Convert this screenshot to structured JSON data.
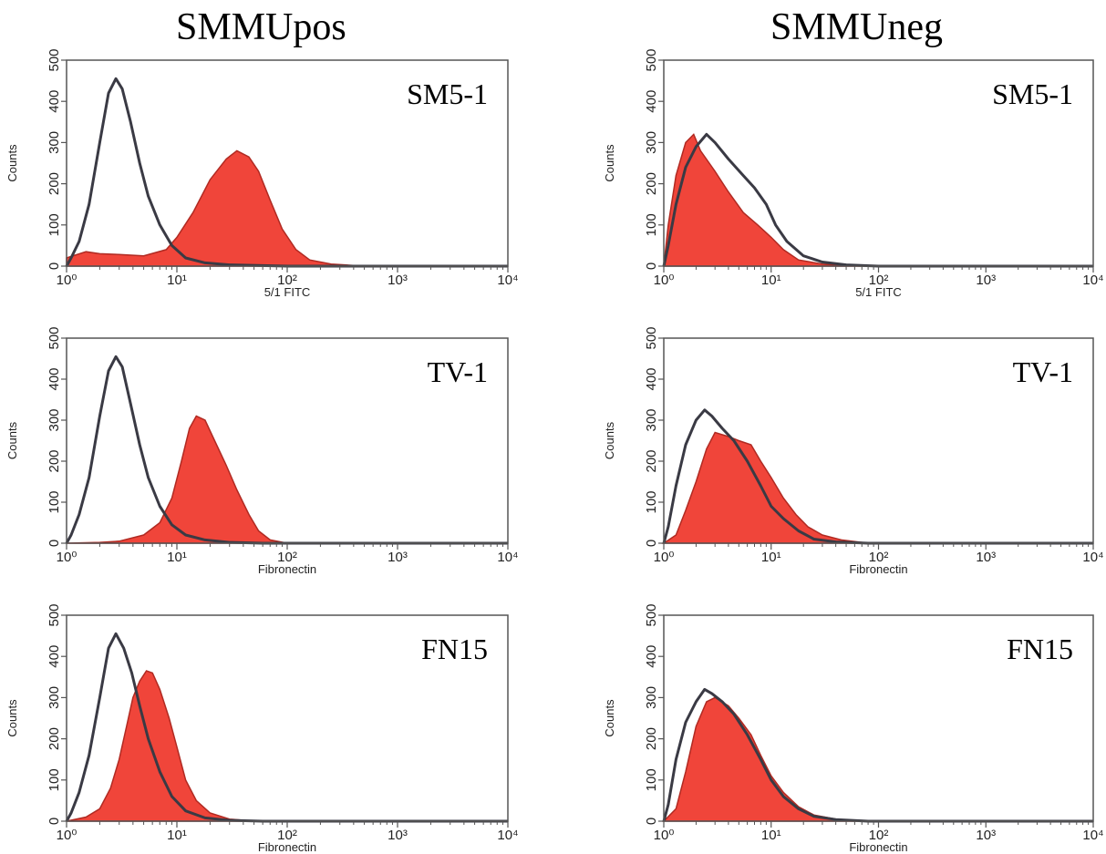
{
  "figure": {
    "columns": [
      "SMMUpos",
      "SMMUneg"
    ],
    "colors": {
      "filled": "#f0453a",
      "outline": "#3a3a44",
      "axis": "#555555"
    }
  },
  "chart_data": [
    {
      "type": "area",
      "column": "SMMUpos",
      "label": "SM5-1",
      "xlabel": "5/1 FITC",
      "ylabel": "Counts",
      "x_scale": "log",
      "xlim": [
        1,
        10000
      ],
      "ylim": [
        0,
        500
      ],
      "x_ticks": [
        "10⁰",
        "10¹",
        "10²",
        "10³",
        "10⁴"
      ],
      "y_ticks": [
        "0",
        "100",
        "200",
        "300",
        "400",
        "500"
      ],
      "series": [
        {
          "kind": "outline",
          "points": [
            [
              1,
              0
            ],
            [
              1.1,
              20
            ],
            [
              1.3,
              60
            ],
            [
              1.6,
              150
            ],
            [
              2,
              300
            ],
            [
              2.4,
              420
            ],
            [
              2.8,
              455
            ],
            [
              3.2,
              430
            ],
            [
              3.8,
              350
            ],
            [
              4.6,
              250
            ],
            [
              5.5,
              170
            ],
            [
              7,
              100
            ],
            [
              9,
              50
            ],
            [
              12,
              20
            ],
            [
              18,
              8
            ],
            [
              30,
              3
            ],
            [
              100,
              0
            ],
            [
              10000,
              0
            ]
          ]
        },
        {
          "kind": "filled",
          "points": [
            [
              1,
              20
            ],
            [
              1.5,
              35
            ],
            [
              2,
              30
            ],
            [
              3,
              28
            ],
            [
              5,
              25
            ],
            [
              8,
              40
            ],
            [
              10,
              70
            ],
            [
              14,
              130
            ],
            [
              20,
              210
            ],
            [
              28,
              260
            ],
            [
              35,
              280
            ],
            [
              45,
              265
            ],
            [
              55,
              230
            ],
            [
              70,
              160
            ],
            [
              90,
              90
            ],
            [
              120,
              40
            ],
            [
              160,
              15
            ],
            [
              250,
              5
            ],
            [
              500,
              0
            ],
            [
              10000,
              0
            ]
          ]
        }
      ]
    },
    {
      "type": "area",
      "column": "SMMUneg",
      "label": "SM5-1",
      "xlabel": "5/1 FITC",
      "ylabel": "Counts",
      "x_scale": "log",
      "xlim": [
        1,
        10000
      ],
      "ylim": [
        0,
        500
      ],
      "x_ticks": [
        "10⁰",
        "10¹",
        "10²",
        "10³",
        "10⁴"
      ],
      "y_ticks": [
        "0",
        "100",
        "200",
        "300",
        "400",
        "500"
      ],
      "series": [
        {
          "kind": "outline",
          "points": [
            [
              1,
              0
            ],
            [
              1.1,
              50
            ],
            [
              1.3,
              150
            ],
            [
              1.6,
              240
            ],
            [
              2,
              290
            ],
            [
              2.5,
              320
            ],
            [
              3,
              300
            ],
            [
              4,
              260
            ],
            [
              5.5,
              220
            ],
            [
              7,
              190
            ],
            [
              9,
              150
            ],
            [
              11,
              100
            ],
            [
              14,
              60
            ],
            [
              20,
              25
            ],
            [
              30,
              10
            ],
            [
              50,
              3
            ],
            [
              100,
              0
            ],
            [
              10000,
              0
            ]
          ]
        },
        {
          "kind": "filled",
          "points": [
            [
              1,
              0
            ],
            [
              1.1,
              100
            ],
            [
              1.3,
              220
            ],
            [
              1.6,
              300
            ],
            [
              1.9,
              320
            ],
            [
              2.2,
              280
            ],
            [
              3,
              230
            ],
            [
              4,
              180
            ],
            [
              5.5,
              130
            ],
            [
              7.5,
              100
            ],
            [
              10,
              70
            ],
            [
              13,
              40
            ],
            [
              18,
              15
            ],
            [
              30,
              5
            ],
            [
              60,
              0
            ],
            [
              10000,
              0
            ]
          ]
        }
      ]
    },
    {
      "type": "area",
      "column": "SMMUpos",
      "label": "TV-1",
      "xlabel": "Fibronectin",
      "ylabel": "Counts",
      "x_scale": "log",
      "xlim": [
        1,
        10000
      ],
      "ylim": [
        0,
        500
      ],
      "x_ticks": [
        "10⁰",
        "10¹",
        "10²",
        "10³",
        "10⁴"
      ],
      "y_ticks": [
        "0",
        "100",
        "200",
        "300",
        "400",
        "500"
      ],
      "series": [
        {
          "kind": "outline",
          "points": [
            [
              1,
              0
            ],
            [
              1.1,
              20
            ],
            [
              1.3,
              70
            ],
            [
              1.6,
              160
            ],
            [
              2,
              310
            ],
            [
              2.4,
              420
            ],
            [
              2.8,
              455
            ],
            [
              3.2,
              430
            ],
            [
              3.8,
              340
            ],
            [
              4.6,
              240
            ],
            [
              5.5,
              160
            ],
            [
              7,
              90
            ],
            [
              9,
              45
            ],
            [
              12,
              20
            ],
            [
              18,
              8
            ],
            [
              30,
              2
            ],
            [
              60,
              0
            ],
            [
              10000,
              0
            ]
          ]
        },
        {
          "kind": "filled",
          "points": [
            [
              1,
              0
            ],
            [
              2,
              2
            ],
            [
              3,
              5
            ],
            [
              5,
              20
            ],
            [
              7,
              50
            ],
            [
              9,
              110
            ],
            [
              11,
              200
            ],
            [
              13,
              280
            ],
            [
              15,
              310
            ],
            [
              18,
              300
            ],
            [
              22,
              250
            ],
            [
              28,
              190
            ],
            [
              35,
              130
            ],
            [
              45,
              70
            ],
            [
              55,
              30
            ],
            [
              70,
              8
            ],
            [
              100,
              0
            ],
            [
              10000,
              0
            ]
          ]
        }
      ]
    },
    {
      "type": "area",
      "column": "SMMUneg",
      "label": "TV-1",
      "xlabel": "Fibronectin",
      "ylabel": "Counts",
      "x_scale": "log",
      "xlim": [
        1,
        10000
      ],
      "ylim": [
        0,
        500
      ],
      "x_ticks": [
        "10⁰",
        "10¹",
        "10²",
        "10³",
        "10⁴"
      ],
      "y_ticks": [
        "0",
        "100",
        "200",
        "300",
        "400",
        "500"
      ],
      "series": [
        {
          "kind": "outline",
          "points": [
            [
              1,
              0
            ],
            [
              1.1,
              40
            ],
            [
              1.3,
              140
            ],
            [
              1.6,
              240
            ],
            [
              2,
              300
            ],
            [
              2.4,
              325
            ],
            [
              2.8,
              310
            ],
            [
              3.5,
              280
            ],
            [
              4.5,
              250
            ],
            [
              6,
              200
            ],
            [
              8,
              140
            ],
            [
              10,
              90
            ],
            [
              13,
              60
            ],
            [
              18,
              30
            ],
            [
              25,
              10
            ],
            [
              40,
              3
            ],
            [
              80,
              0
            ],
            [
              10000,
              0
            ]
          ]
        },
        {
          "kind": "filled",
          "points": [
            [
              1,
              0
            ],
            [
              1.3,
              20
            ],
            [
              1.6,
              80
            ],
            [
              2,
              150
            ],
            [
              2.5,
              230
            ],
            [
              3,
              270
            ],
            [
              4,
              260
            ],
            [
              5,
              250
            ],
            [
              6.5,
              240
            ],
            [
              8,
              200
            ],
            [
              10,
              160
            ],
            [
              13,
              110
            ],
            [
              17,
              70
            ],
            [
              22,
              40
            ],
            [
              30,
              20
            ],
            [
              45,
              8
            ],
            [
              80,
              0
            ],
            [
              10000,
              0
            ]
          ]
        }
      ]
    },
    {
      "type": "area",
      "column": "SMMUpos",
      "label": "FN15",
      "xlabel": "Fibronectin",
      "ylabel": "Counts",
      "x_scale": "log",
      "xlim": [
        1,
        10000
      ],
      "ylim": [
        0,
        500
      ],
      "x_ticks": [
        "10⁰",
        "10¹",
        "10²",
        "10³",
        "10⁴"
      ],
      "y_ticks": [
        "0",
        "100",
        "200",
        "300",
        "400",
        "500"
      ],
      "series": [
        {
          "kind": "outline",
          "points": [
            [
              1,
              0
            ],
            [
              1.1,
              20
            ],
            [
              1.3,
              70
            ],
            [
              1.6,
              160
            ],
            [
              2,
              300
            ],
            [
              2.4,
              420
            ],
            [
              2.8,
              455
            ],
            [
              3.3,
              420
            ],
            [
              3.9,
              360
            ],
            [
              4.6,
              280
            ],
            [
              5.5,
              200
            ],
            [
              7,
              120
            ],
            [
              9,
              60
            ],
            [
              12,
              25
            ],
            [
              18,
              8
            ],
            [
              30,
              2
            ],
            [
              60,
              0
            ],
            [
              10000,
              0
            ]
          ]
        },
        {
          "kind": "filled",
          "points": [
            [
              1,
              0
            ],
            [
              1.5,
              10
            ],
            [
              2,
              30
            ],
            [
              2.5,
              80
            ],
            [
              3,
              150
            ],
            [
              3.5,
              230
            ],
            [
              4,
              300
            ],
            [
              4.6,
              340
            ],
            [
              5.3,
              365
            ],
            [
              6,
              360
            ],
            [
              7,
              320
            ],
            [
              8.5,
              250
            ],
            [
              10,
              180
            ],
            [
              12,
              100
            ],
            [
              15,
              50
            ],
            [
              20,
              20
            ],
            [
              30,
              5
            ],
            [
              50,
              0
            ],
            [
              10000,
              0
            ]
          ]
        }
      ]
    },
    {
      "type": "area",
      "column": "SMMUneg",
      "label": "FN15",
      "xlabel": "Fibronectin",
      "ylabel": "Counts",
      "x_scale": "log",
      "xlim": [
        1,
        10000
      ],
      "ylim": [
        0,
        500
      ],
      "x_ticks": [
        "10⁰",
        "10¹",
        "10²",
        "10³",
        "10⁴"
      ],
      "y_ticks": [
        "0",
        "100",
        "200",
        "300",
        "400",
        "500"
      ],
      "series": [
        {
          "kind": "outline",
          "points": [
            [
              1,
              0
            ],
            [
              1.1,
              40
            ],
            [
              1.3,
              150
            ],
            [
              1.6,
              240
            ],
            [
              2,
              290
            ],
            [
              2.4,
              320
            ],
            [
              2.8,
              310
            ],
            [
              3.5,
              290
            ],
            [
              4.5,
              260
            ],
            [
              6,
              210
            ],
            [
              8,
              150
            ],
            [
              10,
              100
            ],
            [
              13,
              60
            ],
            [
              18,
              30
            ],
            [
              25,
              12
            ],
            [
              40,
              4
            ],
            [
              80,
              0
            ],
            [
              10000,
              0
            ]
          ]
        },
        {
          "kind": "filled",
          "points": [
            [
              1,
              0
            ],
            [
              1.3,
              30
            ],
            [
              1.6,
              120
            ],
            [
              2,
              230
            ],
            [
              2.5,
              290
            ],
            [
              3,
              300
            ],
            [
              4,
              280
            ],
            [
              5,
              250
            ],
            [
              6.5,
              210
            ],
            [
              8,
              160
            ],
            [
              10,
              110
            ],
            [
              13,
              70
            ],
            [
              18,
              35
            ],
            [
              25,
              15
            ],
            [
              40,
              5
            ],
            [
              80,
              0
            ],
            [
              10000,
              0
            ]
          ]
        }
      ]
    }
  ]
}
